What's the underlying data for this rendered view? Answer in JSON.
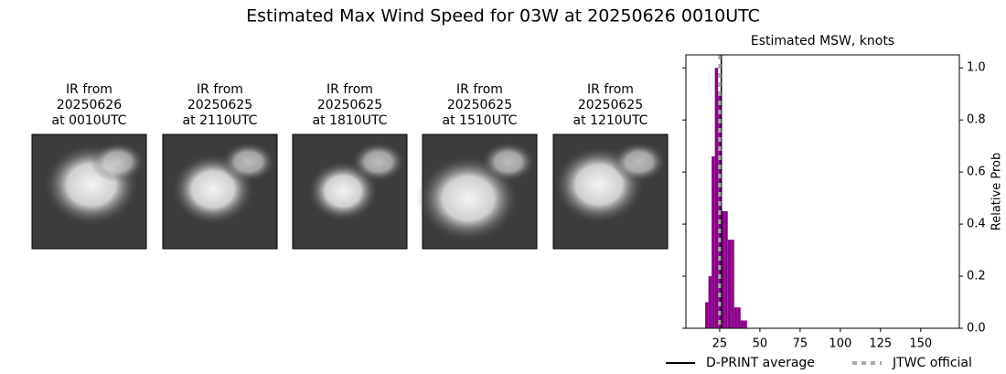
{
  "title": "Estimated Max Wind Speed for 03W at 20250626 0010UTC",
  "panels": [
    {
      "lines": [
        "IR from",
        "20250626",
        "at 0010UTC"
      ]
    },
    {
      "lines": [
        "IR from",
        "20250625",
        "at 2110UTC"
      ]
    },
    {
      "lines": [
        "IR from",
        "20250625",
        "at 1810UTC"
      ]
    },
    {
      "lines": [
        "IR from",
        "20250625",
        "at 1510UTC"
      ]
    },
    {
      "lines": [
        "IR from",
        "20250625",
        "at 1210UTC"
      ]
    }
  ],
  "chart_data": {
    "type": "histogram",
    "title": "Estimated MSW, knots",
    "y_label": "Relative Prob",
    "bins": [
      16,
      18,
      20,
      22,
      24,
      26,
      28,
      30,
      32,
      34,
      36,
      38,
      40,
      42
    ],
    "values": [
      0.1,
      0.2,
      0.66,
      1.0,
      0.91,
      0.45,
      0.45,
      0.34,
      0.34,
      0.08,
      0.08,
      0.03,
      0.03
    ],
    "color": "#8b008b",
    "xlim": [
      4,
      174
    ],
    "xticks": [
      25,
      50,
      75,
      100,
      125,
      150
    ],
    "ylim": [
      0,
      1.05
    ],
    "yticks": [
      {
        "value": 0,
        "label": "0.0"
      },
      0.2,
      0.4,
      0.6,
      0.8,
      {
        "value": 1,
        "label": "1.0"
      }
    ],
    "lines": [
      {
        "name": "D-PRINT average",
        "value": 26,
        "color": "#000000",
        "style": "solid"
      },
      {
        "name": "JTWC official",
        "value": 25,
        "color": "#aaaaaa",
        "style": "dashed"
      }
    ]
  }
}
